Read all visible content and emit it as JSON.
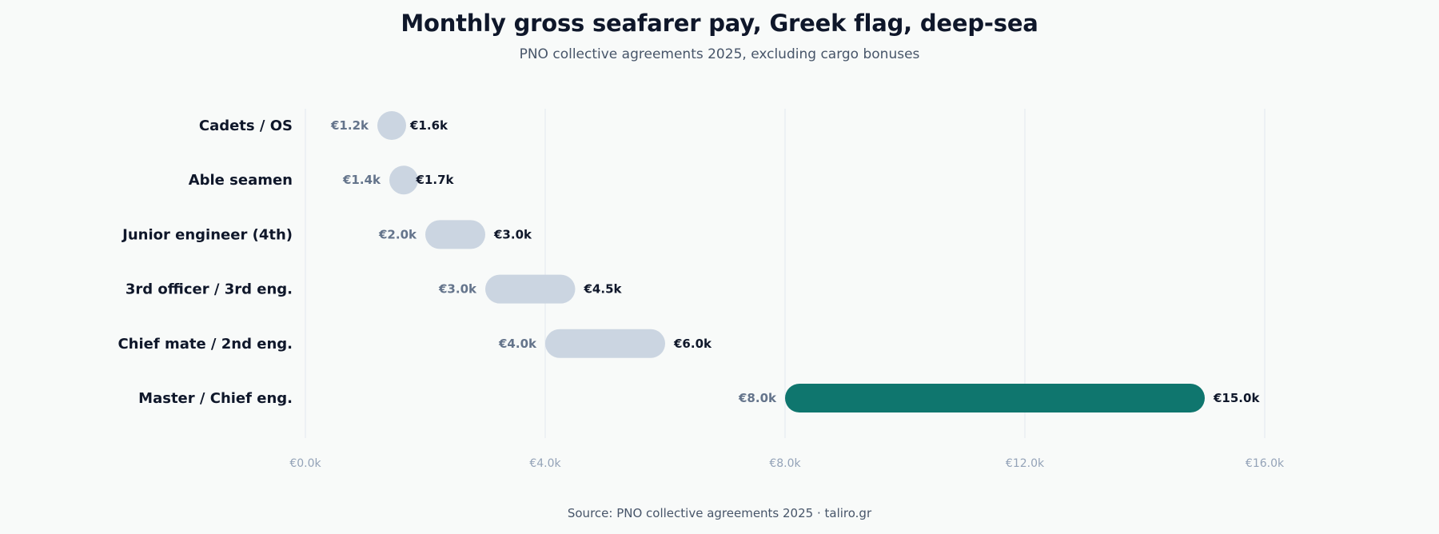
{
  "chart_data": {
    "type": "range-bar",
    "title": "Monthly gross seafarer pay, Greek flag, deep-sea",
    "subtitle": "PNO collective agreements 2025, excluding cargo bonuses",
    "source": "Source: PNO collective agreements 2025 · taliro.gr",
    "categories": [
      "Cadets / OS",
      "Able seamen",
      "Junior engineer (4th)",
      "3rd officer / 3rd eng.",
      "Chief mate / 2nd eng.",
      "Master / Chief eng."
    ],
    "min_values": [
      1.2,
      1.4,
      2.0,
      3.0,
      4.0,
      8.0
    ],
    "max_values": [
      1.6,
      1.7,
      3.0,
      4.5,
      6.0,
      15.0
    ],
    "min_labels": [
      "€1.2k",
      "€1.4k",
      "€2.0k",
      "€3.0k",
      "€4.0k",
      "€8.0k"
    ],
    "max_labels": [
      "€1.6k",
      "€1.7k",
      "€3.0k",
      "€4.5k",
      "€6.0k",
      "€15.0k"
    ],
    "highlighted": [
      false,
      false,
      false,
      false,
      false,
      true
    ],
    "unit": "€ thousand per month",
    "xlim": [
      0,
      16
    ],
    "x_ticks": [
      0,
      4,
      8,
      12,
      16
    ],
    "x_tick_labels": [
      "€0.0k",
      "€4.0k",
      "€8.0k",
      "€12.0k",
      "€16.0k"
    ],
    "grid": true,
    "colors": {
      "default_bar": "#cbd5e1",
      "highlight_bar": "#0f766e",
      "gridline": "#e2e8f0"
    }
  }
}
